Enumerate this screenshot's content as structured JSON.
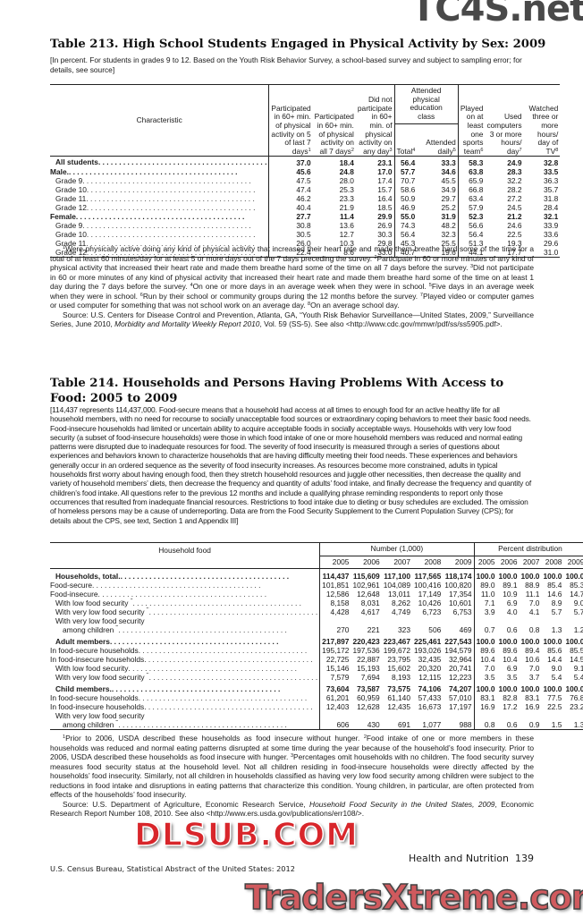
{
  "watermarks": {
    "top": "TC4S.net",
    "middle": "DLSUB.COM",
    "bottom": "TradersXtreme.com"
  },
  "table213": {
    "title": "Table 213. High School Students Engaged in Physical Activity by Sex: 2009",
    "headnote": "[In percent. For students in grades 9 to 12. Based on the Youth Risk Behavior Survey, a school-based survey and subject to sampling error; for details, see source]",
    "headers": {
      "characteristic": "Characteristic",
      "c1": "Participated in 60+ min. of physical activity on 5 of last 7 days",
      "c1_sup": "1",
      "c2": "Participated in 60+ min. of physical activity on all 7 days",
      "c2_sup": "2",
      "c3": "Did not participate in 60+ min. of physical activity on any day",
      "c3_sup": "3",
      "group": "Attended physical education class",
      "c4": "Total",
      "c4_sup": "4",
      "c5": "Attended daily",
      "c5_sup": "5",
      "c6": "Played on at least one sports team",
      "c6_sup": "6",
      "c7": "Used computers 3 or more hours/ day",
      "c7_sup": "7",
      "c8": "Watched three or more hours/ day of TV",
      "c8_sup": "8"
    },
    "rows": [
      {
        "label": "All students",
        "bold": true,
        "indent": 1,
        "values": [
          "37.0",
          "18.4",
          "23.1",
          "56.4",
          "33.3",
          "58.3",
          "24.9",
          "32.8"
        ]
      },
      {
        "label": "Male.",
        "bold": true,
        "indent": 0,
        "values": [
          "45.6",
          "24.8",
          "17.0",
          "57.7",
          "34.6",
          "63.8",
          "28.3",
          "33.5"
        ]
      },
      {
        "label": "Grade 9",
        "indent": 1,
        "values": [
          "47.5",
          "28.0",
          "17.4",
          "70.7",
          "45.5",
          "65.9",
          "32.2",
          "36.3"
        ]
      },
      {
        "label": "Grade 10",
        "indent": 1,
        "values": [
          "47.4",
          "25.3",
          "15.7",
          "58.6",
          "34.9",
          "66.8",
          "28.2",
          "35.7"
        ]
      },
      {
        "label": "Grade 11",
        "indent": 1,
        "values": [
          "46.2",
          "23.3",
          "16.4",
          "50.9",
          "29.7",
          "63.4",
          "27.2",
          "31.8"
        ]
      },
      {
        "label": "Grade 12",
        "indent": 1,
        "values": [
          "40.4",
          "21.9",
          "18.5",
          "46.9",
          "25.2",
          "57.9",
          "24.5",
          "28.4"
        ]
      },
      {
        "label": "Female",
        "bold": true,
        "indent": 0,
        "values": [
          "27.7",
          "11.4",
          "29.9",
          "55.0",
          "31.9",
          "52.3",
          "21.2",
          "32.1"
        ]
      },
      {
        "label": "Grade 9",
        "indent": 1,
        "values": [
          "30.8",
          "13.6",
          "26.9",
          "74.3",
          "48.2",
          "56.6",
          "24.6",
          "33.9"
        ]
      },
      {
        "label": "Grade 10",
        "indent": 1,
        "values": [
          "30.5",
          "12.7",
          "30.3",
          "56.4",
          "32.3",
          "56.4",
          "22.5",
          "33.6"
        ]
      },
      {
        "label": "Grade 11",
        "indent": 1,
        "values": [
          "26.0",
          "10.3",
          "29.8",
          "45.3",
          "25.5",
          "51.3",
          "19.3",
          "29.6"
        ]
      },
      {
        "label": "Grade 12",
        "indent": 1,
        "values": [
          "22.4",
          "8.6",
          "33.0",
          "40.7",
          "19.6",
          "44.1",
          "17.7",
          "31.0"
        ]
      }
    ],
    "footnotes": [
      {
        "sup": "1",
        "text": "Were physically active doing any kind of physical activity that increased their heart rate and made them breathe hard some of the time for a total of at least 60 minutes/day for at least 5 or more days out of the 7 days preceding the survey."
      },
      {
        "sup": "2",
        "text": "Participate in 60 or more minutes of any kind of physical activity that increased their heart rate and made them breathe hard some of the time on all 7 days before the survey."
      },
      {
        "sup": "3",
        "text": "Did not participate in 60 or more minutes of any kind of physical activity that increased their heart rate and made them breathe hard some of the time on at least 1 day during the 7 days before the survey."
      },
      {
        "sup": "4",
        "text": "On one or more days in an average week when they were in school."
      },
      {
        "sup": "5",
        "text": "Five days in an average week when they were in school."
      },
      {
        "sup": "6",
        "text": "Run by their school or community groups during the 12 months before the survey."
      },
      {
        "sup": "7",
        "text": "Played video or computer games or used computer for something that was not school work on an average day."
      },
      {
        "sup": "8",
        "text": "On an average school day."
      }
    ],
    "source_pre": "Source: U.S. Centers for Disease Control and Prevention, Atlanta, GA, “Youth Risk Behavior Surveillance—United States, 2009,” Surveillance Series, June 2010, ",
    "source_italic": "Morbidity and Mortality Weekly Report 2010",
    "source_post": ", Vol. 59 (SS-5). See also <http://www.cdc.gov/mmwr/pdf/ss/ss5905.pdf>."
  },
  "table214": {
    "title": "Table 214. Households and Persons Having Problems With Access to Food: 2005 to 2009",
    "headnote": "[114,437 represents 114,437,000. Food-secure means that a household had access at all times to enough food for an active healthy life for all household members, with no need for recourse to socially unacceptable food sources or extraordinary coping behaviors to meet their basic food needs. Food-insecure households had limited or uncertain ability to acquire acceptable foods in socially acceptable ways. Households with very low food security (a subset of food-insecure households) were those in which food intake of one or more household members was reduced and normal eating patterns were disrupted due to inadequate resources for food. The severity of food insecurity is measured through a series of questions about experiences and behaviors known to characterize households that are having difficulty meeting their food needs. These experiences and behaviors generally occur in an ordered sequence as the severity of food insecurity increases. As resources become more constrained, adults in typical households first worry about having enough food, then they stretch household resources and juggle other necessities, then decrease the quality and variety of household members’ diets, then decrease the frequency and quantity of adults’ food intake, and finally decrease the frequency and quantity of children’s food intake. All questions refer to the previous 12 months and include a qualifying phrase reminding respondents to report only those occurrences that resulted from inadequate financial resources. Restrictions to food intake due to dieting or busy schedules are excluded. The omission of homeless persons may be a cause of underreporting. Data are from the Food Security Supplement to the Current Population Survey (CPS); for details about the CPS, see text, Section 1 and Appendix III]",
    "headers": {
      "label": "Household food",
      "number": "Number (1,000)",
      "percent": "Percent distribution",
      "years": [
        "2005",
        "2006",
        "2007",
        "2008",
        "2009"
      ]
    },
    "rows": [
      {
        "label": "Households, total.",
        "bold": true,
        "indent": 1,
        "values": [
          "114,437",
          "115,609",
          "117,100",
          "117,565",
          "118,174",
          "100.0",
          "100.0",
          "100.0",
          "100.0",
          "100.0"
        ]
      },
      {
        "label": "Food-secure",
        "indent": 0,
        "values": [
          "101,851",
          "102,961",
          "104,089",
          "100,416",
          "100,820",
          "89.0",
          "89.1",
          "88.9",
          "85.4",
          "85.3"
        ]
      },
      {
        "label": "Food-insecure",
        "indent": 0,
        "values": [
          "12,586",
          "12,648",
          "13,011",
          "17,149",
          "17,354",
          "11.0",
          "10.9",
          "11.1",
          "14.6",
          "14.7"
        ]
      },
      {
        "label": "With low food security",
        "sup": "1",
        "indent": 1,
        "values": [
          "8,158",
          "8,031",
          "8,262",
          "10,426",
          "10,601",
          "7.1",
          "6.9",
          "7.0",
          "8.9",
          "9.0"
        ]
      },
      {
        "label": "With very low food security",
        "sup": "2",
        "indent": 1,
        "values": [
          "4,428",
          "4,617",
          "4,749",
          "6,723",
          "6,753",
          "3.9",
          "4.0",
          "4.1",
          "5.7",
          "5.7"
        ]
      },
      {
        "label_line1": "With very low food security",
        "label": "among children",
        "sup": "3",
        "indent": 1,
        "two_line": true,
        "values": [
          "270",
          "221",
          "323",
          "506",
          "469",
          "0.7",
          "0.6",
          "0.8",
          "1.3",
          "1.2"
        ]
      },
      {
        "label": "Adult members",
        "bold": true,
        "indent": 1,
        "gap": true,
        "values": [
          "217,897",
          "220,423",
          "223,467",
          "225,461",
          "227,543",
          "100.0",
          "100.0",
          "100.0",
          "100.0",
          "100.0"
        ]
      },
      {
        "label": "In food-secure households",
        "indent": 0,
        "values": [
          "195,172",
          "197,536",
          "199,672",
          "193,026",
          "194,579",
          "89.6",
          "89.6",
          "89.4",
          "85.6",
          "85.5"
        ]
      },
      {
        "label": "In food-insecure households",
        "indent": 0,
        "values": [
          "22,725",
          "22,887",
          "23,795",
          "32,435",
          "32,964",
          "10.4",
          "10.4",
          "10.6",
          "14.4",
          "14.5"
        ]
      },
      {
        "label": "With low food security",
        "indent": 1,
        "values": [
          "15,146",
          "15,193",
          "15,602",
          "20,320",
          "20,741",
          "7.0",
          "6.9",
          "7.0",
          "9.0",
          "9.1"
        ]
      },
      {
        "label": "With very low food security",
        "sup": "2",
        "indent": 1,
        "values": [
          "7,579",
          "7,694",
          "8,193",
          "12,115",
          "12,223",
          "3.5",
          "3.5",
          "3.7",
          "5.4",
          "5.4"
        ]
      },
      {
        "label": "Child members.",
        "bold": true,
        "indent": 1,
        "gap": true,
        "values": [
          "73,604",
          "73,587",
          "73,575",
          "74,106",
          "74,207",
          "100.0",
          "100.0",
          "100.0",
          "100.0",
          "100.0"
        ]
      },
      {
        "label": "In food-secure households",
        "indent": 0,
        "values": [
          "61,201",
          "60,959",
          "61,140",
          "57,433",
          "57,010",
          "83.1",
          "82.8",
          "83.1",
          "77.5",
          "76.8"
        ]
      },
      {
        "label": "In food-insecure households",
        "indent": 0,
        "values": [
          "12,403",
          "12,628",
          "12,435",
          "16,673",
          "17,197",
          "16.9",
          "17.2",
          "16.9",
          "22.5",
          "23.2"
        ]
      },
      {
        "label_line1": "With very low food security",
        "label": "among children",
        "sup": "3",
        "indent": 1,
        "two_line": true,
        "values": [
          "606",
          "430",
          "691",
          "1,077",
          "988",
          "0.8",
          "0.6",
          "0.9",
          "1.5",
          "1.3"
        ]
      }
    ],
    "footnotes": [
      {
        "sup": "1",
        "text": "Prior to 2006, USDA described these households as food insecure without hunger."
      },
      {
        "sup": "2",
        "text": "Food intake of one or more members in these households was reduced and normal eating patterns disrupted at some time during the year because of the household’s food insecurity. Prior to 2006, USDA described these households as food insecure with hunger."
      },
      {
        "sup": "3",
        "text": "Percentages omit households with no children. The food security survey measures food security status at the household level. Not all children residing in food-insecure households were directly affected by the households’ food insecurity. Similarly, not all children in households classified as having very low food security among children were subject to the reductions in food intake and disruptions in eating patterns that characterize this condition. Young children, in particular, are often protected from effects of the households’ food insecurity."
      }
    ],
    "source_pre": "Source: U.S. Department of Agriculture, Economic Research Service, ",
    "source_italic": "Household Food Security in the United States, 2009",
    "source_post": ", Economic Research Report Number 108, 2010. See also <http://www.ers.usda.gov/publications/err108/>."
  },
  "footer": {
    "section": "Health and Nutrition",
    "page": "139",
    "publication": "U.S. Census Bureau, Statistical Abstract of the United States: 2012"
  }
}
